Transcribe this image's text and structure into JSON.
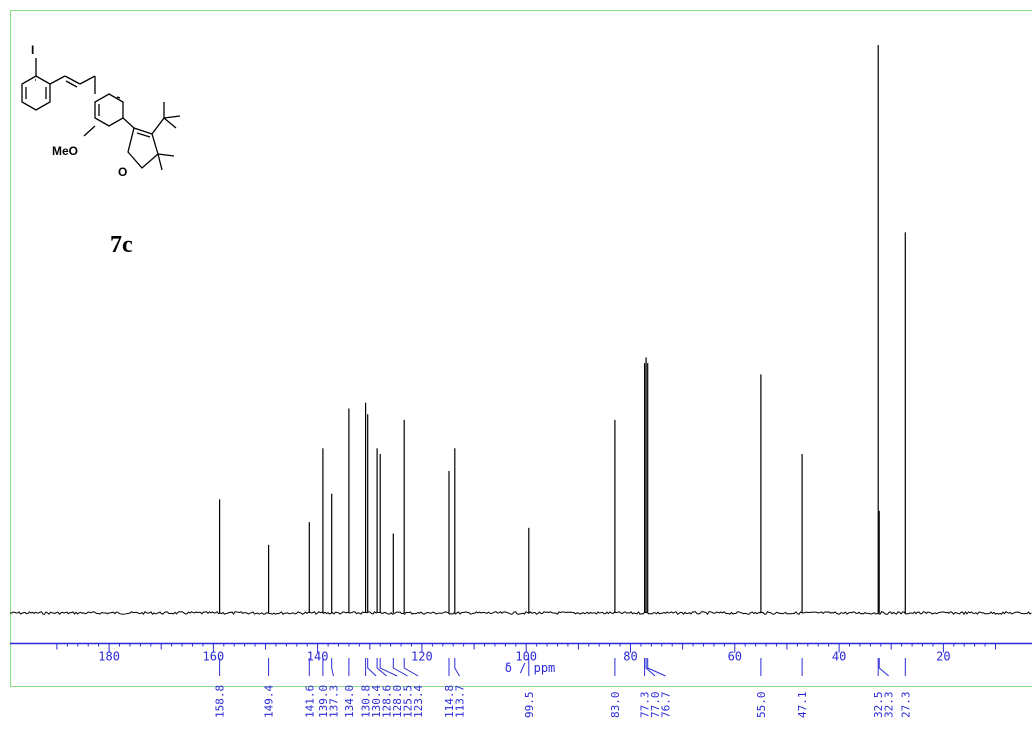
{
  "compound": {
    "label": "7c",
    "atoms": {
      "iodine": "I",
      "methoxy": "MeO",
      "oxygen": "O"
    }
  },
  "chart_data": {
    "type": "line",
    "title": "",
    "xlabel": "δ / ppm",
    "ylabel": "",
    "xlim": [
      199,
      3
    ],
    "x_reversed": true,
    "ticks": [
      180,
      160,
      140,
      120,
      100,
      80,
      60,
      40,
      20
    ],
    "grid": false,
    "peaks": [
      {
        "ppm": 158.8,
        "height": 0.2
      },
      {
        "ppm": 149.4,
        "height": 0.12
      },
      {
        "ppm": 141.6,
        "height": 0.16
      },
      {
        "ppm": 139.0,
        "height": 0.29
      },
      {
        "ppm": 137.3,
        "height": 0.21
      },
      {
        "ppm": 134.0,
        "height": 0.36
      },
      {
        "ppm": 130.8,
        "height": 0.37
      },
      {
        "ppm": 130.4,
        "height": 0.35
      },
      {
        "ppm": 128.6,
        "height": 0.29
      },
      {
        "ppm": 128.0,
        "height": 0.28
      },
      {
        "ppm": 125.5,
        "height": 0.14
      },
      {
        "ppm": 123.4,
        "height": 0.34
      },
      {
        "ppm": 114.8,
        "height": 0.25
      },
      {
        "ppm": 113.7,
        "height": 0.29
      },
      {
        "ppm": 99.5,
        "height": 0.15
      },
      {
        "ppm": 83.0,
        "height": 0.34
      },
      {
        "ppm": 77.3,
        "height": 0.44
      },
      {
        "ppm": 77.0,
        "height": 0.45
      },
      {
        "ppm": 76.7,
        "height": 0.44
      },
      {
        "ppm": 55.0,
        "height": 0.42
      },
      {
        "ppm": 47.1,
        "height": 0.28
      },
      {
        "ppm": 32.5,
        "height": 1.0
      },
      {
        "ppm": 32.3,
        "height": 0.18
      },
      {
        "ppm": 27.3,
        "height": 0.67
      }
    ],
    "peak_labels": [
      "158.8",
      "149.4",
      "141.6",
      "139.0",
      "137.3",
      "134.0",
      "130.8",
      "130.4",
      "128.6",
      "128.0",
      "125.5",
      "123.4",
      "114.8",
      "113.7",
      "99.5",
      "83.0",
      "77.3",
      "77.0",
      "76.7",
      "55.0",
      "47.1",
      "32.5",
      "32.3",
      "27.3"
    ],
    "colors": {
      "spectrum": "#000000",
      "frame": "#88dd88",
      "axis": "#2a2ad8"
    }
  }
}
